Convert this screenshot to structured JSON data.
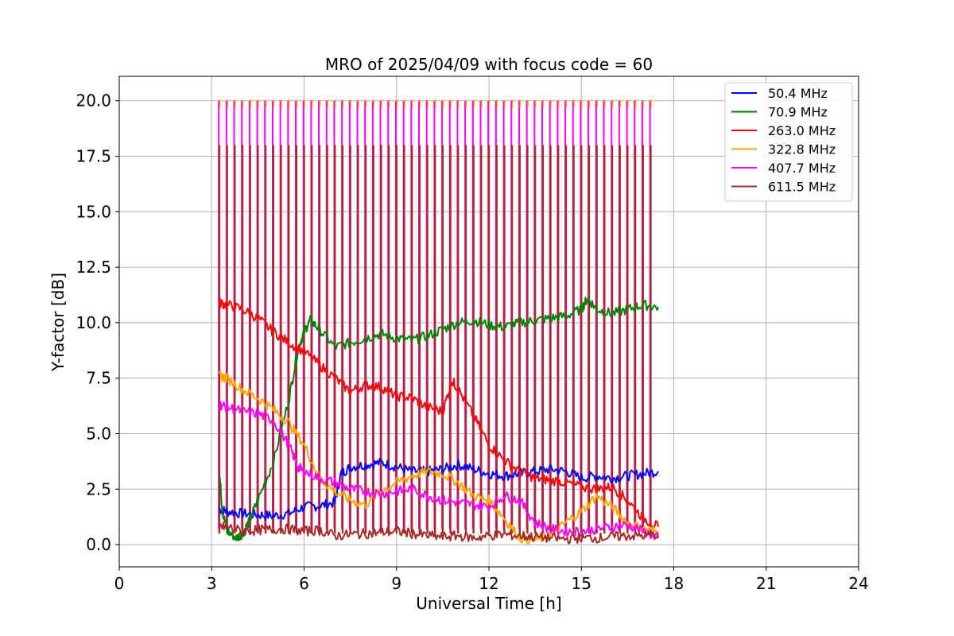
{
  "chart_data": {
    "type": "line",
    "title": "MRO of 2025/04/09 with focus code = 60",
    "xlabel": "Universal Time [h]",
    "ylabel": "Y-factor [dB]",
    "xlim": [
      0,
      24
    ],
    "ylim": [
      -1.0,
      21.1
    ],
    "xticks": [
      0,
      3,
      6,
      9,
      12,
      15,
      18,
      21,
      24
    ],
    "xtick_labels": [
      "0",
      "3",
      "6",
      "9",
      "12",
      "15",
      "18",
      "21",
      "24"
    ],
    "yticks": [
      0.0,
      2.5,
      5.0,
      7.5,
      10.0,
      12.5,
      15.0,
      17.5,
      20.0
    ],
    "ytick_labels": [
      "0.0",
      "2.5",
      "5.0",
      "7.5",
      "10.0",
      "12.5",
      "15.0",
      "17.5",
      "20.0"
    ],
    "grid": true,
    "legend_position": "top-right",
    "calibration_spikes": {
      "start_h": 3.25,
      "end_h": 17.25,
      "count": 57,
      "peak_407_7": 20.0,
      "peak_322_8": 20.05,
      "peak_611_5": 18.0
    },
    "series": [
      {
        "name": " 50.4 MHz",
        "color": "#0000ff",
        "x": [
          3.25,
          3.5,
          4.0,
          4.5,
          5.0,
          5.5,
          6.0,
          6.5,
          7.0,
          7.2,
          7.5,
          8.0,
          8.5,
          9.0,
          9.5,
          10.0,
          10.5,
          11.0,
          11.5,
          12.0,
          12.5,
          13.0,
          13.5,
          14.0,
          14.5,
          15.0,
          15.5,
          16.0,
          16.5,
          17.0,
          17.5
        ],
        "y": [
          1.6,
          1.5,
          1.4,
          1.35,
          1.3,
          1.4,
          1.7,
          1.75,
          1.9,
          3.2,
          3.5,
          3.6,
          3.7,
          3.5,
          3.3,
          3.3,
          3.4,
          3.6,
          3.4,
          3.2,
          3.1,
          3.2,
          3.3,
          3.4,
          3.3,
          3.0,
          3.1,
          3.0,
          3.1,
          3.2,
          3.3
        ]
      },
      {
        "name": " 70.9 MHz",
        "color": "#008000",
        "x": [
          3.25,
          3.35,
          3.5,
          3.8,
          4.0,
          4.2,
          4.5,
          5.0,
          5.5,
          5.8,
          6.0,
          6.2,
          6.5,
          7.0,
          7.5,
          8.0,
          8.5,
          9.0,
          9.5,
          10.0,
          10.5,
          11.0,
          11.5,
          12.0,
          12.5,
          13.0,
          13.5,
          14.0,
          14.5,
          15.0,
          15.2,
          15.5,
          16.0,
          16.5,
          17.0,
          17.5
        ],
        "y": [
          3.3,
          1.5,
          0.6,
          0.3,
          0.5,
          1.0,
          2.0,
          3.7,
          6.5,
          8.8,
          9.6,
          10.1,
          9.7,
          8.9,
          9.1,
          9.3,
          9.5,
          9.3,
          9.2,
          9.4,
          9.7,
          10.0,
          10.1,
          9.9,
          9.8,
          10.0,
          10.1,
          10.2,
          10.3,
          10.6,
          11.1,
          10.6,
          10.4,
          10.6,
          10.8,
          10.7
        ]
      },
      {
        "name": " 263.0 MHz",
        "color": "#ff0000",
        "x": [
          3.25,
          3.5,
          4.0,
          4.5,
          5.0,
          5.5,
          6.0,
          6.5,
          7.0,
          7.5,
          8.0,
          8.5,
          9.0,
          9.5,
          10.0,
          10.5,
          10.8,
          11.0,
          11.5,
          12.0,
          12.5,
          13.0,
          13.5,
          14.0,
          14.5,
          15.0,
          15.5,
          16.0,
          16.5,
          17.0,
          17.5
        ],
        "y": [
          10.9,
          10.8,
          10.6,
          10.2,
          9.6,
          9.1,
          8.7,
          8.1,
          7.5,
          6.9,
          7.2,
          7.1,
          6.7,
          6.6,
          6.2,
          6.0,
          7.4,
          7.0,
          5.8,
          4.5,
          3.8,
          3.3,
          3.0,
          2.9,
          2.8,
          2.6,
          2.5,
          2.6,
          2.0,
          1.2,
          0.8
        ]
      },
      {
        "name": " 322.8 MHz",
        "color": "#ffa500",
        "x": [
          3.25,
          3.5,
          4.0,
          4.5,
          5.0,
          5.5,
          6.0,
          6.5,
          7.0,
          7.5,
          8.0,
          8.5,
          9.0,
          9.5,
          10.0,
          10.5,
          11.0,
          11.5,
          12.0,
          12.5,
          13.0,
          13.5,
          14.0,
          14.5,
          15.0,
          15.5,
          16.0,
          16.5,
          17.0,
          17.5
        ],
        "y": [
          7.6,
          7.5,
          7.0,
          6.6,
          6.1,
          5.5,
          4.5,
          3.0,
          2.4,
          2.0,
          1.8,
          2.4,
          2.8,
          3.1,
          3.3,
          3.2,
          2.8,
          2.2,
          2.0,
          1.2,
          0.3,
          0.2,
          0.4,
          1.0,
          1.5,
          2.2,
          1.7,
          1.0,
          0.7,
          0.6
        ]
      },
      {
        "name": " 407.7 MHz",
        "color": "#ff00ff",
        "x": [
          3.25,
          3.5,
          4.0,
          4.5,
          5.0,
          5.5,
          5.8,
          6.0,
          6.5,
          7.0,
          7.5,
          8.0,
          8.5,
          9.0,
          9.5,
          10.0,
          10.5,
          11.0,
          11.5,
          12.0,
          12.5,
          13.0,
          13.5,
          14.0,
          14.5,
          15.0,
          15.5,
          16.0,
          16.5,
          17.0,
          17.5
        ],
        "y": [
          6.3,
          6.2,
          6.0,
          5.9,
          5.6,
          4.5,
          3.5,
          3.3,
          3.0,
          2.8,
          2.5,
          2.4,
          2.3,
          2.4,
          2.5,
          2.2,
          2.0,
          1.9,
          1.8,
          1.7,
          2.2,
          2.0,
          1.0,
          0.7,
          0.6,
          0.6,
          0.7,
          0.8,
          0.9,
          0.6,
          0.3
        ]
      },
      {
        "name": " 611.5 MHz",
        "color": "#a52a2a",
        "x": [
          3.25,
          3.5,
          4.0,
          4.5,
          5.0,
          5.5,
          6.0,
          6.5,
          7.0,
          7.5,
          8.0,
          8.5,
          9.0,
          9.5,
          10.0,
          10.5,
          11.0,
          11.5,
          12.0,
          12.5,
          13.0,
          13.5,
          14.0,
          14.5,
          15.0,
          15.5,
          16.0,
          16.5,
          17.0,
          17.5
        ],
        "y": [
          0.8,
          0.8,
          0.6,
          0.65,
          0.7,
          0.7,
          0.6,
          0.65,
          0.4,
          0.45,
          0.5,
          0.55,
          0.6,
          0.5,
          0.4,
          0.35,
          0.4,
          0.3,
          0.4,
          0.45,
          0.4,
          0.35,
          0.3,
          0.25,
          0.3,
          0.3,
          0.35,
          0.4,
          0.4,
          0.45
        ]
      }
    ]
  }
}
